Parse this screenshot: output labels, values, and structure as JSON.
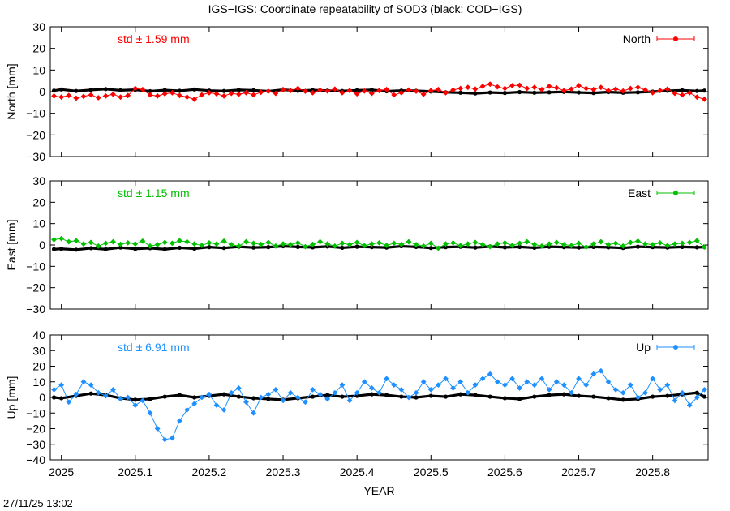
{
  "title": "IGS−IGS: Coordinate repeatability of SOD3 (black: COD−IGS)",
  "footer_timestamp": "27/11/25 13:02",
  "chart_data": {
    "type": "scatter",
    "xlabel": "YEAR",
    "xlim": [
      2024.985,
      2025.875
    ],
    "xticks": [
      2025,
      2025.1,
      2025.2,
      2025.3,
      2025.4,
      2025.5,
      2025.6,
      2025.7,
      2025.8
    ],
    "xtick_labels": [
      "2025",
      "2025.1",
      "2025.2",
      "2025.3",
      "2025.4",
      "2025.5",
      "2025.6",
      "2025.7",
      "2025.8"
    ],
    "grid": false,
    "panels": [
      {
        "id": "north",
        "ylabel": "North [mm]",
        "ylim": [
          -30,
          30
        ],
        "yticks": [
          30,
          20,
          10,
          0,
          -10,
          -20,
          -30
        ],
        "ytick_labels": [
          "30",
          "20",
          "10",
          "0",
          "−10",
          "−20",
          "−30"
        ],
        "std_label": "std ± 1.59 mm",
        "legend": "North",
        "color": "#ff0000",
        "black_x": [
          2024.99,
          2025.0,
          2025.02,
          2025.04,
          2025.06,
          2025.08,
          2025.1,
          2025.12,
          2025.14,
          2025.16,
          2025.18,
          2025.2,
          2025.22,
          2025.24,
          2025.26,
          2025.28,
          2025.3,
          2025.32,
          2025.34,
          2025.36,
          2025.38,
          2025.4,
          2025.42,
          2025.44,
          2025.46,
          2025.48,
          2025.5,
          2025.52,
          2025.54,
          2025.56,
          2025.58,
          2025.6,
          2025.62,
          2025.64,
          2025.66,
          2025.68,
          2025.7,
          2025.72,
          2025.74,
          2025.76,
          2025.78,
          2025.8,
          2025.82,
          2025.84,
          2025.86,
          2025.87
        ],
        "black_y": [
          0.5,
          1.0,
          0.3,
          0.8,
          1.2,
          0.6,
          0.9,
          0.2,
          0.7,
          0.4,
          1.0,
          0.5,
          0.3,
          0.8,
          0.6,
          0.2,
          0.9,
          0.4,
          0.7,
          0.5,
          0.3,
          0.6,
          0.8,
          0.2,
          0.5,
          0.4,
          0.1,
          -0.3,
          -0.5,
          -0.8,
          -0.4,
          -0.6,
          -0.2,
          -0.5,
          -0.3,
          -0.1,
          -0.4,
          -0.6,
          -0.2,
          -0.5,
          -0.3,
          0.0,
          0.4,
          0.6,
          0.3,
          0.5
        ],
        "series_x": [
          2024.99,
          2025.0,
          2025.01,
          2025.02,
          2025.03,
          2025.04,
          2025.05,
          2025.06,
          2025.07,
          2025.08,
          2025.09,
          2025.1,
          2025.11,
          2025.12,
          2025.13,
          2025.14,
          2025.15,
          2025.16,
          2025.17,
          2025.18,
          2025.19,
          2025.2,
          2025.21,
          2025.22,
          2025.23,
          2025.24,
          2025.25,
          2025.26,
          2025.27,
          2025.28,
          2025.29,
          2025.3,
          2025.31,
          2025.32,
          2025.33,
          2025.34,
          2025.35,
          2025.36,
          2025.37,
          2025.38,
          2025.39,
          2025.4,
          2025.41,
          2025.42,
          2025.43,
          2025.44,
          2025.45,
          2025.46,
          2025.47,
          2025.48,
          2025.49,
          2025.5,
          2025.51,
          2025.52,
          2025.53,
          2025.54,
          2025.55,
          2025.56,
          2025.57,
          2025.58,
          2025.59,
          2025.6,
          2025.61,
          2025.62,
          2025.63,
          2025.64,
          2025.65,
          2025.66,
          2025.67,
          2025.68,
          2025.69,
          2025.7,
          2025.71,
          2025.72,
          2025.73,
          2025.74,
          2025.75,
          2025.76,
          2025.77,
          2025.78,
          2025.79,
          2025.8,
          2025.81,
          2025.82,
          2025.83,
          2025.84,
          2025.85,
          2025.86,
          2025.87
        ],
        "series_y": [
          -2,
          -2.5,
          -1.8,
          -3,
          -2.2,
          -1.5,
          -2.8,
          -2,
          -1.2,
          -2.5,
          -1.8,
          1.5,
          1.0,
          -1.5,
          -2,
          -1,
          -0.5,
          -1.8,
          -2.5,
          -3.5,
          -1.5,
          -0.5,
          -1,
          -2,
          -0.8,
          -1.2,
          -0.5,
          -1.5,
          -0.3,
          0.2,
          -0.8,
          1.0,
          0.5,
          1.5,
          0.2,
          -0.5,
          0.8,
          0.3,
          1.2,
          -0.5,
          0.5,
          -1.0,
          0.3,
          -0.8,
          0.5,
          1.0,
          -1.5,
          -0.5,
          0.8,
          0.2,
          -1.2,
          0.5,
          1.0,
          -0.5,
          0.8,
          1.5,
          2.0,
          1.2,
          2.5,
          3.5,
          2.2,
          1.5,
          2.8,
          3.0,
          1.5,
          2.0,
          1.0,
          2.5,
          1.8,
          0.5,
          1.2,
          2.8,
          1.5,
          1.0,
          2.0,
          0.5,
          1.2,
          0.3,
          1.5,
          2.0,
          0.8,
          -0.5,
          0.5,
          1.2,
          -0.8,
          -1.5,
          -0.5,
          -2.5,
          -3.5
        ]
      },
      {
        "id": "east",
        "ylabel": "East [mm]",
        "ylim": [
          -30,
          30
        ],
        "yticks": [
          30,
          20,
          10,
          0,
          -10,
          -20,
          -30
        ],
        "ytick_labels": [
          "30",
          "20",
          "10",
          "0",
          "−10",
          "−20",
          "−30"
        ],
        "std_label": "std ± 1.15 mm",
        "legend": "East",
        "color": "#00c000",
        "black_x": [
          2024.99,
          2025.0,
          2025.02,
          2025.04,
          2025.06,
          2025.08,
          2025.1,
          2025.12,
          2025.14,
          2025.16,
          2025.18,
          2025.2,
          2025.22,
          2025.24,
          2025.26,
          2025.28,
          2025.3,
          2025.32,
          2025.34,
          2025.36,
          2025.38,
          2025.4,
          2025.42,
          2025.44,
          2025.46,
          2025.48,
          2025.5,
          2025.52,
          2025.54,
          2025.56,
          2025.58,
          2025.6,
          2025.62,
          2025.64,
          2025.66,
          2025.68,
          2025.7,
          2025.72,
          2025.74,
          2025.76,
          2025.78,
          2025.8,
          2025.82,
          2025.84,
          2025.86,
          2025.87
        ],
        "black_y": [
          -2.0,
          -1.8,
          -2.2,
          -1.5,
          -2.0,
          -1.2,
          -1.8,
          -1.5,
          -2.0,
          -1.3,
          -1.7,
          -1.0,
          -1.4,
          -0.8,
          -1.2,
          -1.0,
          -0.6,
          -0.9,
          -1.1,
          -0.7,
          -1.3,
          -0.8,
          -1.0,
          -1.2,
          -0.6,
          -0.9,
          -1.4,
          -1.0,
          -0.8,
          -1.2,
          -0.7,
          -1.1,
          -0.9,
          -1.3,
          -0.8,
          -1.0,
          -1.2,
          -0.9,
          -1.1,
          -1.4,
          -0.8,
          -1.0,
          -1.2,
          -0.9,
          -1.1,
          -1.0
        ],
        "series_x": [
          2024.99,
          2025.0,
          2025.01,
          2025.02,
          2025.03,
          2025.04,
          2025.05,
          2025.06,
          2025.07,
          2025.08,
          2025.09,
          2025.1,
          2025.11,
          2025.12,
          2025.13,
          2025.14,
          2025.15,
          2025.16,
          2025.17,
          2025.18,
          2025.19,
          2025.2,
          2025.21,
          2025.22,
          2025.23,
          2025.24,
          2025.25,
          2025.26,
          2025.27,
          2025.28,
          2025.29,
          2025.3,
          2025.31,
          2025.32,
          2025.33,
          2025.34,
          2025.35,
          2025.36,
          2025.37,
          2025.38,
          2025.39,
          2025.4,
          2025.41,
          2025.42,
          2025.43,
          2025.44,
          2025.45,
          2025.46,
          2025.47,
          2025.48,
          2025.49,
          2025.5,
          2025.51,
          2025.52,
          2025.53,
          2025.54,
          2025.55,
          2025.56,
          2025.57,
          2025.58,
          2025.59,
          2025.6,
          2025.61,
          2025.62,
          2025.63,
          2025.64,
          2025.65,
          2025.66,
          2025.67,
          2025.68,
          2025.69,
          2025.7,
          2025.71,
          2025.72,
          2025.73,
          2025.74,
          2025.75,
          2025.76,
          2025.77,
          2025.78,
          2025.79,
          2025.8,
          2025.81,
          2025.82,
          2025.83,
          2025.84,
          2025.85,
          2025.86,
          2025.87
        ],
        "series_y": [
          2.5,
          3.0,
          1.5,
          2.0,
          0.5,
          1.2,
          -0.5,
          0.8,
          1.5,
          0.3,
          1.0,
          0.5,
          1.8,
          -0.5,
          0.2,
          1.2,
          0.8,
          2.0,
          1.5,
          0.5,
          -0.2,
          1.0,
          0.5,
          1.8,
          0.2,
          -0.5,
          1.5,
          0.8,
          0.3,
          1.2,
          -0.5,
          0.5,
          0.2,
          1.0,
          -0.8,
          0.3,
          1.5,
          0.5,
          -0.5,
          0.8,
          0.2,
          1.2,
          -0.3,
          0.5,
          1.0,
          -0.2,
          0.8,
          0.3,
          1.5,
          0.2,
          -0.5,
          0.8,
          -1.5,
          0.5,
          1.0,
          -0.3,
          0.5,
          1.2,
          0.2,
          -0.8,
          0.5,
          1.0,
          -0.2,
          0.8,
          1.5,
          0.3,
          -0.5,
          0.5,
          1.2,
          0.2,
          -0.3,
          0.8,
          -1.0,
          0.5,
          1.5,
          0.2,
          0.8,
          -0.5,
          1.2,
          1.8,
          0.5,
          0.2,
          1.0,
          -0.3,
          0.5,
          0.8,
          1.2,
          2.0,
          -1.0
        ]
      },
      {
        "id": "up",
        "ylabel": "Up [mm]",
        "ylim": [
          -40,
          40
        ],
        "yticks": [
          40,
          30,
          20,
          10,
          0,
          -10,
          -20,
          -30,
          -40
        ],
        "ytick_labels": [
          "40",
          "30",
          "20",
          "10",
          "0",
          "−10",
          "−20",
          "−30",
          "−40"
        ],
        "std_label": "std ± 6.91 mm",
        "legend": "Up",
        "color": "#1e90ff",
        "black_x": [
          2024.99,
          2025.0,
          2025.02,
          2025.04,
          2025.06,
          2025.08,
          2025.1,
          2025.12,
          2025.14,
          2025.16,
          2025.18,
          2025.2,
          2025.22,
          2025.24,
          2025.26,
          2025.28,
          2025.3,
          2025.32,
          2025.34,
          2025.36,
          2025.38,
          2025.4,
          2025.42,
          2025.44,
          2025.46,
          2025.48,
          2025.5,
          2025.52,
          2025.54,
          2025.56,
          2025.58,
          2025.6,
          2025.62,
          2025.64,
          2025.66,
          2025.68,
          2025.7,
          2025.72,
          2025.74,
          2025.76,
          2025.78,
          2025.8,
          2025.82,
          2025.84,
          2025.86,
          2025.87
        ],
        "black_y": [
          0.0,
          -0.5,
          1.0,
          2.5,
          1.5,
          -0.5,
          -1.5,
          -1.0,
          0.5,
          1.5,
          0.0,
          1.0,
          2.0,
          0.5,
          -0.5,
          -1.0,
          -1.5,
          -0.5,
          0.5,
          1.5,
          0.5,
          1.0,
          2.0,
          1.5,
          0.5,
          0.0,
          1.0,
          0.5,
          2.0,
          1.5,
          0.5,
          -0.5,
          -1.0,
          0.5,
          1.5,
          2.0,
          1.0,
          0.5,
          -0.5,
          -1.5,
          -1.0,
          0.5,
          1.0,
          2.0,
          3.0,
          0.5
        ],
        "series_x": [
          2024.99,
          2025.0,
          2025.01,
          2025.02,
          2025.03,
          2025.04,
          2025.05,
          2025.06,
          2025.07,
          2025.08,
          2025.09,
          2025.1,
          2025.11,
          2025.12,
          2025.13,
          2025.14,
          2025.15,
          2025.16,
          2025.17,
          2025.18,
          2025.19,
          2025.2,
          2025.21,
          2025.22,
          2025.23,
          2025.24,
          2025.25,
          2025.26,
          2025.27,
          2025.28,
          2025.29,
          2025.3,
          2025.31,
          2025.32,
          2025.33,
          2025.34,
          2025.35,
          2025.36,
          2025.37,
          2025.38,
          2025.39,
          2025.4,
          2025.41,
          2025.42,
          2025.43,
          2025.44,
          2025.45,
          2025.46,
          2025.47,
          2025.48,
          2025.49,
          2025.5,
          2025.51,
          2025.52,
          2025.53,
          2025.54,
          2025.55,
          2025.56,
          2025.57,
          2025.58,
          2025.59,
          2025.6,
          2025.61,
          2025.62,
          2025.63,
          2025.64,
          2025.65,
          2025.66,
          2025.67,
          2025.68,
          2025.69,
          2025.7,
          2025.71,
          2025.72,
          2025.73,
          2025.74,
          2025.75,
          2025.76,
          2025.77,
          2025.78,
          2025.79,
          2025.8,
          2025.81,
          2025.82,
          2025.83,
          2025.84,
          2025.85,
          2025.86,
          2025.87
        ],
        "series_y": [
          5,
          8,
          -3,
          2,
          10,
          8,
          3,
          1,
          5,
          -1,
          0,
          -5,
          -2,
          -10,
          -20,
          -27,
          -26,
          -15,
          -8,
          -4,
          0,
          2,
          -5,
          -8,
          3,
          6,
          -3,
          -10,
          0,
          2,
          5,
          -2,
          3,
          0,
          -3,
          5,
          2,
          -1,
          3,
          8,
          -2,
          3,
          10,
          6,
          3,
          12,
          8,
          5,
          0,
          3,
          10,
          5,
          8,
          12,
          6,
          10,
          3,
          8,
          12,
          15,
          10,
          8,
          12,
          6,
          10,
          8,
          12,
          5,
          10,
          8,
          3,
          12,
          8,
          15,
          17,
          10,
          5,
          3,
          8,
          0,
          3,
          12,
          5,
          8,
          -2,
          3,
          -5,
          0,
          5
        ]
      }
    ]
  }
}
